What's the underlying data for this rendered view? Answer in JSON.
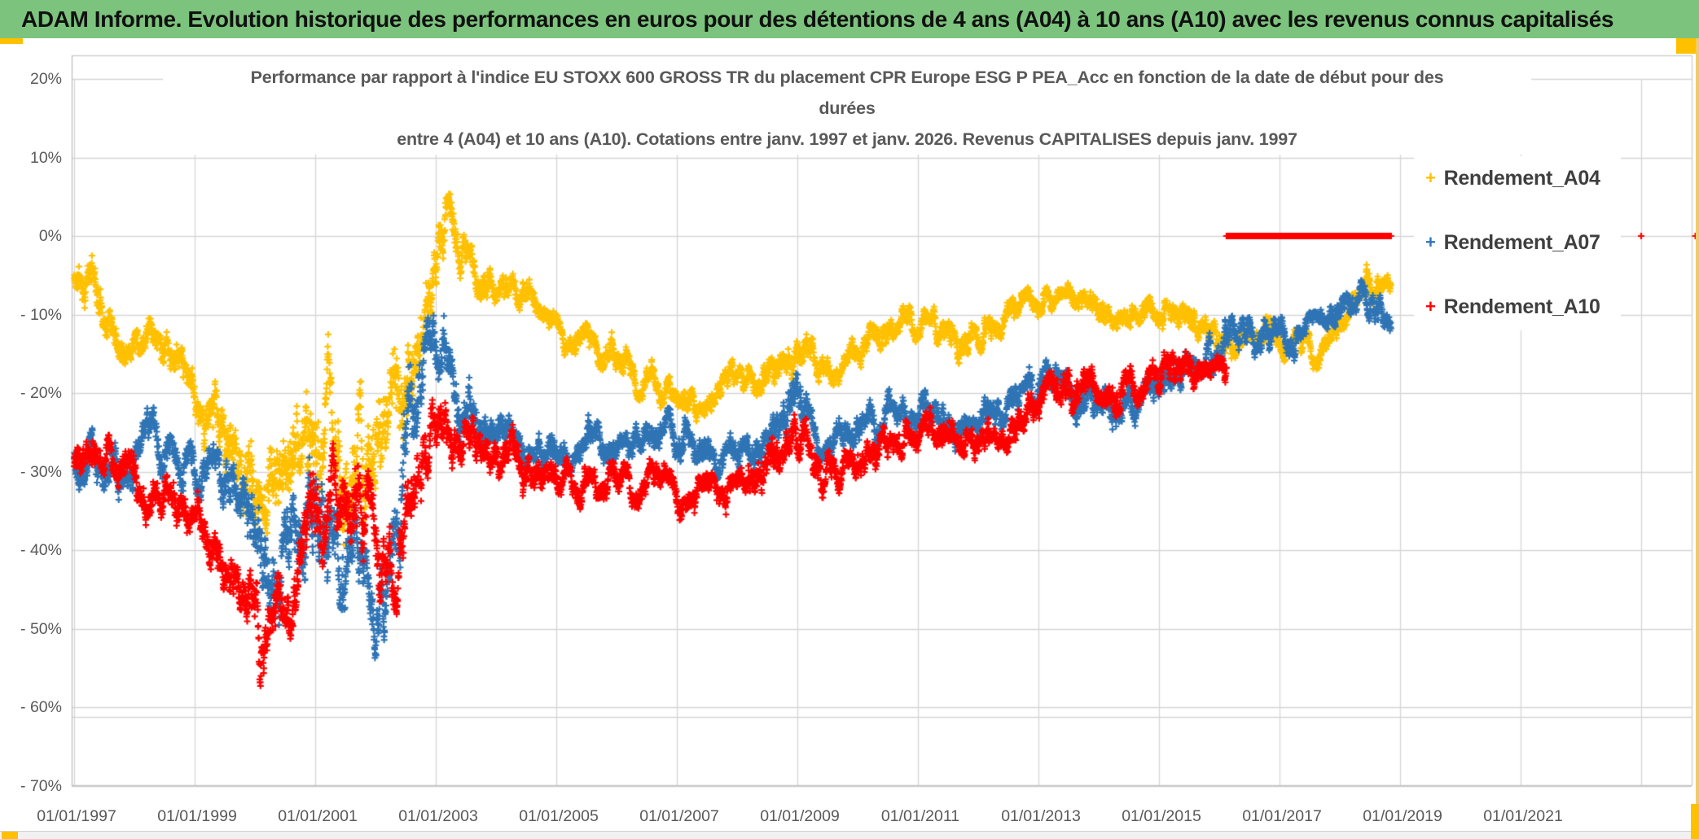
{
  "header": {
    "title": "ADAM Informe. Evolution historique des performances en euros pour des détentions de 4 ans (A04) à 10 ans (A10) avec les revenus connus capitalisés"
  },
  "accent_colors": {
    "banner_green": "#7CC47D",
    "selection_gold": "#FFC000",
    "grid_gray": "#D6D6D6",
    "text_gray": "#595959"
  },
  "chart_data": {
    "type": "scatter",
    "title_lines": [
      "Performance par rapport à l'indice EU STOXX 600 GROSS TR  du placement CPR Europe ESG P PEA_Acc en fonction de la date de début pour des",
      "durées",
      "entre 4 (A04) et 10 ans (A10). Cotations entre janv. 1997 et janv. 2026. Revenus CAPITALISES depuis janv. 1997"
    ],
    "x_axis": {
      "labels": [
        "01/01/1997",
        "01/01/1999",
        "01/01/2001",
        "01/01/2003",
        "01/01/2005",
        "01/01/2007",
        "01/01/2009",
        "01/01/2011",
        "01/01/2013",
        "01/01/2015",
        "01/01/2017",
        "01/01/2019",
        "01/01/2021"
      ],
      "label_years": [
        1997,
        1999,
        2001,
        2003,
        2005,
        2007,
        2009,
        2011,
        2013,
        2015,
        2017,
        2019,
        2021
      ],
      "gridline_years": [
        1997,
        1999,
        2001,
        2003,
        2005,
        2007,
        2009,
        2011,
        2013,
        2015,
        2017,
        2019,
        2021,
        2023
      ],
      "range_years": [
        1997,
        2023.85
      ]
    },
    "y_axis": {
      "labels": [
        "20%",
        "10%",
        "0%",
        "- 10%",
        "- 20%",
        "- 30%",
        "- 40%",
        "- 50%",
        "- 60%",
        "- 70%"
      ],
      "values": [
        20,
        10,
        0,
        -10,
        -20,
        -30,
        -40,
        -50,
        -60,
        -70
      ],
      "unit": "%",
      "extra_gridline_value": -61.2
    },
    "legend": [
      {
        "label": "Rendement_A04",
        "color": "#FFC000"
      },
      {
        "label": "Rendement_A07",
        "color": "#2E74B5"
      },
      {
        "label": "Rendement_A10",
        "color": "#FF0000"
      }
    ],
    "points_per_year": 250,
    "series": [
      {
        "name": "Rendement_A04",
        "color": "#FFC000",
        "t_start": 1997.0,
        "t_end": 2018.85,
        "seed": 11,
        "keyframes": [
          [
            1997.0,
            -6,
            3
          ],
          [
            1997.3,
            -5,
            3
          ],
          [
            1997.6,
            -11,
            3
          ],
          [
            1998.0,
            -12,
            3
          ],
          [
            1998.25,
            -10,
            3
          ],
          [
            1998.5,
            -15,
            3
          ],
          [
            1998.75,
            -17,
            3
          ],
          [
            1999.0,
            -21,
            3
          ],
          [
            1999.25,
            -23,
            3.5
          ],
          [
            1999.5,
            -27,
            5
          ],
          [
            1999.75,
            -31,
            5
          ],
          [
            2000.1,
            -32,
            6
          ],
          [
            2000.4,
            -30,
            7
          ],
          [
            2000.7,
            -29,
            7
          ],
          [
            2001.0,
            -24,
            8
          ],
          [
            2001.3,
            -27,
            9
          ],
          [
            2001.6,
            -32,
            10
          ],
          [
            2001.85,
            -30,
            11
          ],
          [
            2002.1,
            -26,
            10
          ],
          [
            2002.4,
            -21,
            8
          ],
          [
            2002.65,
            -15,
            6
          ],
          [
            2002.9,
            -7,
            5
          ],
          [
            2003.05,
            -1,
            5
          ],
          [
            2003.2,
            0,
            4
          ],
          [
            2003.4,
            -2,
            3.5
          ],
          [
            2003.7,
            -4,
            3
          ],
          [
            2004.0,
            -7,
            2.5
          ],
          [
            2004.3,
            -6.5,
            2
          ],
          [
            2004.7,
            -10,
            2
          ],
          [
            2005.0,
            -12,
            2
          ],
          [
            2005.4,
            -13,
            2
          ],
          [
            2005.8,
            -15,
            2
          ],
          [
            2006.2,
            -17,
            2
          ],
          [
            2006.6,
            -19,
            2
          ],
          [
            2007.0,
            -21,
            2
          ],
          [
            2007.35,
            -22,
            2
          ],
          [
            2007.7,
            -20,
            2
          ],
          [
            2008.0,
            -18,
            2
          ],
          [
            2008.4,
            -17,
            2.5
          ],
          [
            2008.8,
            -18,
            3
          ],
          [
            2009.0,
            -13,
            3
          ],
          [
            2009.2,
            -16,
            2.5
          ],
          [
            2009.5,
            -17,
            2
          ],
          [
            2009.8,
            -15,
            2
          ],
          [
            2010.1,
            -14,
            2
          ],
          [
            2010.5,
            -12,
            2
          ],
          [
            2010.9,
            -11,
            2
          ],
          [
            2011.2,
            -10,
            2
          ],
          [
            2011.5,
            -12,
            2.5
          ],
          [
            2011.8,
            -14,
            2.5
          ],
          [
            2012.1,
            -12,
            2
          ],
          [
            2012.5,
            -11,
            2
          ],
          [
            2012.9,
            -9,
            2
          ],
          [
            2013.3,
            -8,
            2
          ],
          [
            2013.7,
            -8.5,
            2
          ],
          [
            2014.1,
            -9.5,
            2
          ],
          [
            2014.5,
            -10.5,
            2
          ],
          [
            2014.9,
            -9.5,
            2
          ],
          [
            2015.3,
            -10,
            2
          ],
          [
            2015.7,
            -12,
            2
          ],
          [
            2016.1,
            -14,
            2.5
          ],
          [
            2016.4,
            -12.5,
            2
          ],
          [
            2016.8,
            -11.5,
            2
          ],
          [
            2017.2,
            -14,
            2
          ],
          [
            2017.6,
            -14.5,
            2
          ],
          [
            2017.9,
            -12,
            2
          ],
          [
            2018.1,
            -9,
            2
          ],
          [
            2018.45,
            -6.5,
            2
          ],
          [
            2018.85,
            -6,
            1.8
          ]
        ]
      },
      {
        "name": "Rendement_A07",
        "color": "#2E74B5",
        "t_start": 1997.0,
        "t_end": 2018.85,
        "seed": 22,
        "keyframes": [
          [
            1997.0,
            -28,
            3
          ],
          [
            1997.3,
            -27,
            3
          ],
          [
            1997.6,
            -30,
            3
          ],
          [
            1998.0,
            -28,
            3.5
          ],
          [
            1998.3,
            -25,
            3
          ],
          [
            1998.6,
            -29,
            3
          ],
          [
            1999.0,
            -31,
            3
          ],
          [
            1999.3,
            -28,
            3.5
          ],
          [
            1999.6,
            -32,
            4
          ],
          [
            1999.9,
            -36,
            5
          ],
          [
            2000.15,
            -43,
            6
          ],
          [
            2000.4,
            -42,
            6
          ],
          [
            2000.7,
            -38,
            7
          ],
          [
            2001.0,
            -34,
            8
          ],
          [
            2001.3,
            -38,
            7
          ],
          [
            2001.6,
            -42,
            6
          ],
          [
            2001.9,
            -46,
            5
          ],
          [
            2002.15,
            -46,
            5
          ],
          [
            2002.4,
            -35,
            8
          ],
          [
            2002.6,
            -24,
            8
          ],
          [
            2002.8,
            -16,
            5
          ],
          [
            2003.0,
            -15,
            5
          ],
          [
            2003.2,
            -18,
            5
          ],
          [
            2003.5,
            -22,
            4
          ],
          [
            2003.8,
            -24,
            3
          ],
          [
            2004.1,
            -25,
            3
          ],
          [
            2004.5,
            -27,
            2.5
          ],
          [
            2004.9,
            -28,
            2.5
          ],
          [
            2005.3,
            -27,
            2.5
          ],
          [
            2005.7,
            -26,
            2.5
          ],
          [
            2006.1,
            -27,
            2.5
          ],
          [
            2006.5,
            -25,
            2.5
          ],
          [
            2006.9,
            -26,
            2.5
          ],
          [
            2007.3,
            -27,
            2.5
          ],
          [
            2007.7,
            -28,
            2.5
          ],
          [
            2008.0,
            -27,
            2.5
          ],
          [
            2008.4,
            -26,
            3
          ],
          [
            2008.8,
            -22,
            4
          ],
          [
            2009.0,
            -19,
            4
          ],
          [
            2009.2,
            -23,
            3
          ],
          [
            2009.5,
            -26,
            2.5
          ],
          [
            2009.9,
            -25,
            2.5
          ],
          [
            2010.3,
            -23,
            2.5
          ],
          [
            2010.7,
            -22,
            2.5
          ],
          [
            2011.0,
            -21,
            2.5
          ],
          [
            2011.4,
            -23,
            2.5
          ],
          [
            2011.8,
            -24,
            2.5
          ],
          [
            2012.2,
            -22,
            2.5
          ],
          [
            2012.6,
            -20,
            2.5
          ],
          [
            2013.0,
            -18.5,
            2.5
          ],
          [
            2013.4,
            -19.5,
            2.5
          ],
          [
            2013.8,
            -21,
            2.5
          ],
          [
            2014.2,
            -21.5,
            2.5
          ],
          [
            2014.6,
            -21,
            2.5
          ],
          [
            2015.0,
            -19,
            2.5
          ],
          [
            2015.4,
            -17,
            2.5
          ],
          [
            2015.8,
            -15.5,
            2.5
          ],
          [
            2016.1,
            -14,
            2.5
          ],
          [
            2016.4,
            -13,
            2.5
          ],
          [
            2016.8,
            -13.5,
            2.5
          ],
          [
            2017.2,
            -13.5,
            2
          ],
          [
            2017.6,
            -12,
            2
          ],
          [
            2018.0,
            -10,
            2
          ],
          [
            2018.35,
            -8.5,
            2
          ],
          [
            2018.6,
            -9.5,
            2
          ],
          [
            2018.85,
            -11,
            2
          ]
        ]
      },
      {
        "name": "Rendement_A10",
        "color": "#FF0000",
        "t_start": 1997.0,
        "t_end": 2016.12,
        "seed": 33,
        "flat_zero": [
          2016.12,
          2018.85
        ],
        "stray_points": [
          [
            2023.0,
            0
          ],
          [
            2023.9,
            0
          ]
        ],
        "keyframes": [
          [
            1997.0,
            -29,
            3
          ],
          [
            1997.4,
            -28,
            3
          ],
          [
            1997.8,
            -31,
            3
          ],
          [
            1998.1,
            -33,
            3
          ],
          [
            1998.4,
            -35,
            3
          ],
          [
            1998.8,
            -34,
            3.5
          ],
          [
            1999.1,
            -38,
            3.5
          ],
          [
            1999.4,
            -41,
            4
          ],
          [
            1999.7,
            -43,
            4
          ],
          [
            1999.95,
            -47,
            5
          ],
          [
            2000.15,
            -53,
            5
          ],
          [
            2000.35,
            -50,
            5
          ],
          [
            2000.6,
            -45,
            5
          ],
          [
            2000.9,
            -40,
            6
          ],
          [
            2001.2,
            -35,
            7
          ],
          [
            2001.5,
            -33,
            7
          ],
          [
            2001.8,
            -34,
            7
          ],
          [
            2002.1,
            -38,
            7
          ],
          [
            2002.35,
            -41,
            5
          ],
          [
            2002.6,
            -35,
            6
          ],
          [
            2002.9,
            -28,
            5
          ],
          [
            2003.1,
            -24,
            4
          ],
          [
            2003.4,
            -26,
            3
          ],
          [
            2003.7,
            -26,
            3
          ],
          [
            2004.0,
            -27,
            3
          ],
          [
            2004.4,
            -29,
            3
          ],
          [
            2004.8,
            -31,
            2.5
          ],
          [
            2005.2,
            -31,
            2.5
          ],
          [
            2005.6,
            -32,
            2.5
          ],
          [
            2006.0,
            -32,
            2.5
          ],
          [
            2006.4,
            -33,
            2.5
          ],
          [
            2006.8,
            -32,
            2.5
          ],
          [
            2007.2,
            -33,
            2.5
          ],
          [
            2007.6,
            -34,
            2.5
          ],
          [
            2008.0,
            -32,
            2.5
          ],
          [
            2008.4,
            -30,
            3
          ],
          [
            2008.8,
            -28,
            3
          ],
          [
            2009.1,
            -26,
            3
          ],
          [
            2009.4,
            -29,
            3
          ],
          [
            2009.8,
            -29,
            2.5
          ],
          [
            2010.2,
            -27,
            2.5
          ],
          [
            2010.6,
            -26,
            2.5
          ],
          [
            2011.0,
            -24.5,
            2.5
          ],
          [
            2011.4,
            -26,
            2.5
          ],
          [
            2011.8,
            -27,
            2.5
          ],
          [
            2012.2,
            -26,
            2.5
          ],
          [
            2012.6,
            -24,
            2.5
          ],
          [
            2013.0,
            -21,
            2.5
          ],
          [
            2013.4,
            -19,
            2.5
          ],
          [
            2013.8,
            -19.5,
            2.5
          ],
          [
            2014.2,
            -19.5,
            2.5
          ],
          [
            2014.6,
            -19,
            2.5
          ],
          [
            2015.0,
            -18,
            2.5
          ],
          [
            2015.4,
            -17,
            2.5
          ],
          [
            2015.8,
            -17.5,
            2
          ],
          [
            2016.12,
            -17,
            2
          ]
        ]
      }
    ]
  }
}
